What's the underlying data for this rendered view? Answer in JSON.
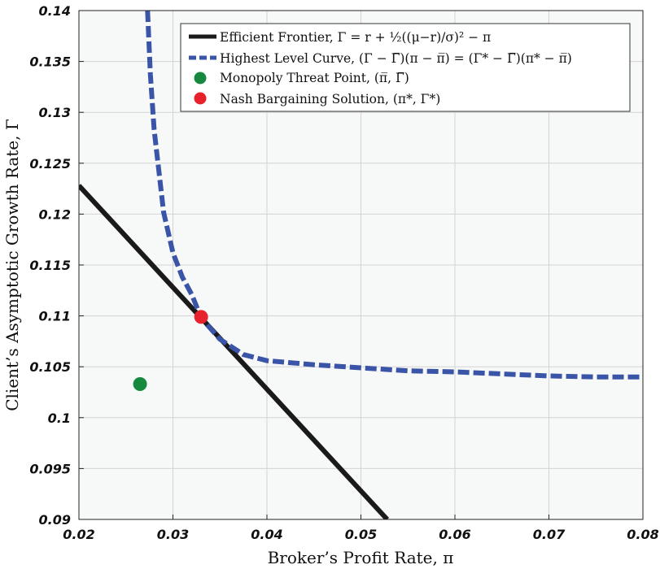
{
  "chart_data": {
    "type": "line",
    "xlabel": "Broker’s Profit Rate, π",
    "ylabel": "Client’s Asymptotic Growth Rate, Γ",
    "xlim": [
      0.02,
      0.08
    ],
    "ylim": [
      0.09,
      0.14
    ],
    "xticks": [
      0.02,
      0.03,
      0.04,
      0.05,
      0.06,
      0.07,
      0.08
    ],
    "xtick_labels": [
      "0.02",
      "0.03",
      "0.04",
      "0.05",
      "0.06",
      "0.07",
      "0.08"
    ],
    "yticks": [
      0.09,
      0.095,
      0.1,
      0.105,
      0.11,
      0.115,
      0.12,
      0.125,
      0.13,
      0.135,
      0.14
    ],
    "ytick_labels": [
      "0.09",
      "0.095",
      "0.1",
      "0.105",
      "0.11",
      "0.115",
      "0.12",
      "0.125",
      "0.13",
      "0.135",
      "0.14"
    ],
    "grid": true,
    "legend_position": "top-right",
    "series": [
      {
        "name": "Efficient Frontier, Γ = r + ½((μ−r)/σ)² − π",
        "style": "solid",
        "color": "#1a1a1a",
        "x": [
          0.02,
          0.0528
        ],
        "y": [
          0.1228,
          0.09
        ]
      },
      {
        "name": "Highest Level Curve, (Γ − Γ̅)(π − π̅) = (Γ* − Γ̅)(π* − π̅)",
        "style": "dashed",
        "color": "#3a55a8",
        "x": [
          0.0273,
          0.0276,
          0.028,
          0.029,
          0.03,
          0.031,
          0.032,
          0.033,
          0.035,
          0.0375,
          0.04,
          0.045,
          0.05,
          0.055,
          0.06,
          0.065,
          0.07,
          0.075,
          0.08
        ],
        "y": [
          0.14,
          0.1337,
          0.1283,
          0.1202,
          0.1162,
          0.1138,
          0.1121,
          0.1098,
          0.1077,
          0.1062,
          0.1056,
          0.1052,
          0.1049,
          0.1046,
          0.1045,
          0.1043,
          0.1041,
          0.104,
          0.104
        ]
      },
      {
        "name": "Monopoly Threat Point, (π̅, Γ̅)",
        "style": "marker",
        "color": "#17893f",
        "x": [
          0.0265
        ],
        "y": [
          0.1033
        ]
      },
      {
        "name": "Nash Bargaining Solution, (π*, Γ*)",
        "style": "marker",
        "color": "#e8222c",
        "x": [
          0.033
        ],
        "y": [
          0.1099
        ]
      }
    ]
  },
  "colors": {
    "plot_background": "#f7f9f8",
    "grid": "#d3d3d3",
    "frontier": "#1a1a1a",
    "level_curve": "#3a55a8",
    "threat_point": "#17893f",
    "nash_point": "#e8222c"
  }
}
